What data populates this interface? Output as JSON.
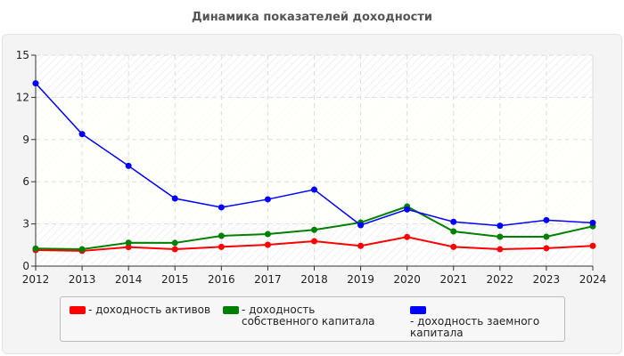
{
  "chart_data": {
    "type": "line",
    "title": "Динамика показателей доходности",
    "x": [
      2012,
      2013,
      2014,
      2015,
      2016,
      2017,
      2018,
      2019,
      2020,
      2021,
      2022,
      2023,
      2024
    ],
    "ylim": [
      0,
      15
    ],
    "yticks": [
      0,
      3,
      6,
      9,
      12,
      15
    ],
    "grid": true,
    "legend": "bottom",
    "series": [
      {
        "name": "- доходность активов",
        "color": "#ff0000",
        "values": [
          1.14,
          1.08,
          1.35,
          1.2,
          1.37,
          1.52,
          1.77,
          1.44,
          2.07,
          1.37,
          1.2,
          1.27,
          1.44
        ]
      },
      {
        "name": "- доходность собственного капитала",
        "color": "#008000",
        "values": [
          1.25,
          1.2,
          1.66,
          1.65,
          2.15,
          2.28,
          2.58,
          3.1,
          4.24,
          2.47,
          2.09,
          2.09,
          2.83
        ]
      },
      {
        "name": "- доходность заемного капитала",
        "color": "#0000ff",
        "values": [
          13.0,
          9.39,
          7.13,
          4.81,
          4.18,
          4.75,
          5.44,
          2.91,
          4.03,
          3.15,
          2.87,
          3.27,
          3.08
        ]
      }
    ]
  }
}
